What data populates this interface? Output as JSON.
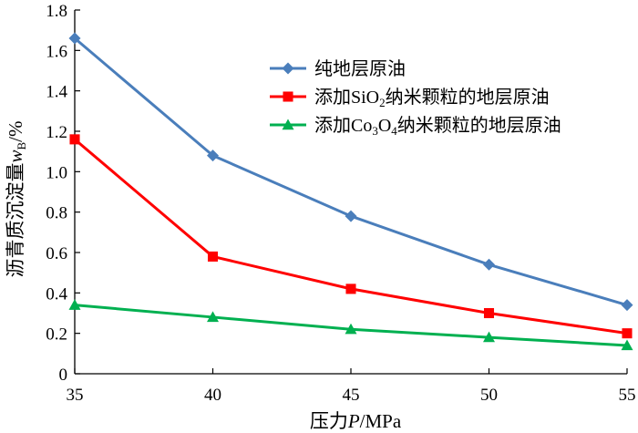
{
  "chart_data": {
    "type": "line",
    "title": "",
    "xlabel": "压力P/MPa",
    "xlabel_parts": [
      "压力",
      "P",
      "/MPa"
    ],
    "ylabel": "沥青质沉淀量wB/%",
    "ylabel_parts": [
      "沥青质沉淀量",
      "w",
      "B",
      "/%"
    ],
    "x": [
      35,
      40,
      45,
      50,
      55
    ],
    "xlim": [
      35,
      55
    ],
    "ylim": [
      0,
      1.8
    ],
    "xticks": [
      "35",
      "40",
      "45",
      "50",
      "55"
    ],
    "yticks": [
      "0",
      "0.2",
      "0.4",
      "0.6",
      "0.8",
      "1.0",
      "1.2",
      "1.4",
      "1.6",
      "1.8"
    ],
    "grid": false,
    "legend_position": "top-right",
    "series": [
      {
        "name": "纯地层原油",
        "name_parts": [
          {
            "t": "纯地层原油"
          }
        ],
        "color": "#4a7ebb",
        "marker": "diamond",
        "values": [
          1.66,
          1.08,
          0.78,
          0.54,
          0.34
        ]
      },
      {
        "name": "添加SiO2纳米颗粒的地层原油",
        "name_parts": [
          {
            "t": "添加SiO"
          },
          {
            "t": "2",
            "sub": true
          },
          {
            "t": "纳米颗粒的地层原油"
          }
        ],
        "color": "#ff0000",
        "marker": "square",
        "values": [
          1.16,
          0.58,
          0.42,
          0.3,
          0.2
        ]
      },
      {
        "name": "添加Co3O4纳米颗粒的地层原油",
        "name_parts": [
          {
            "t": "添加Co"
          },
          {
            "t": "3",
            "sub": true
          },
          {
            "t": "O"
          },
          {
            "t": "4",
            "sub": true
          },
          {
            "t": "纳米颗粒的地层原油"
          }
        ],
        "color": "#00b050",
        "marker": "triangle",
        "values": [
          0.34,
          0.28,
          0.22,
          0.18,
          0.14
        ]
      }
    ]
  }
}
